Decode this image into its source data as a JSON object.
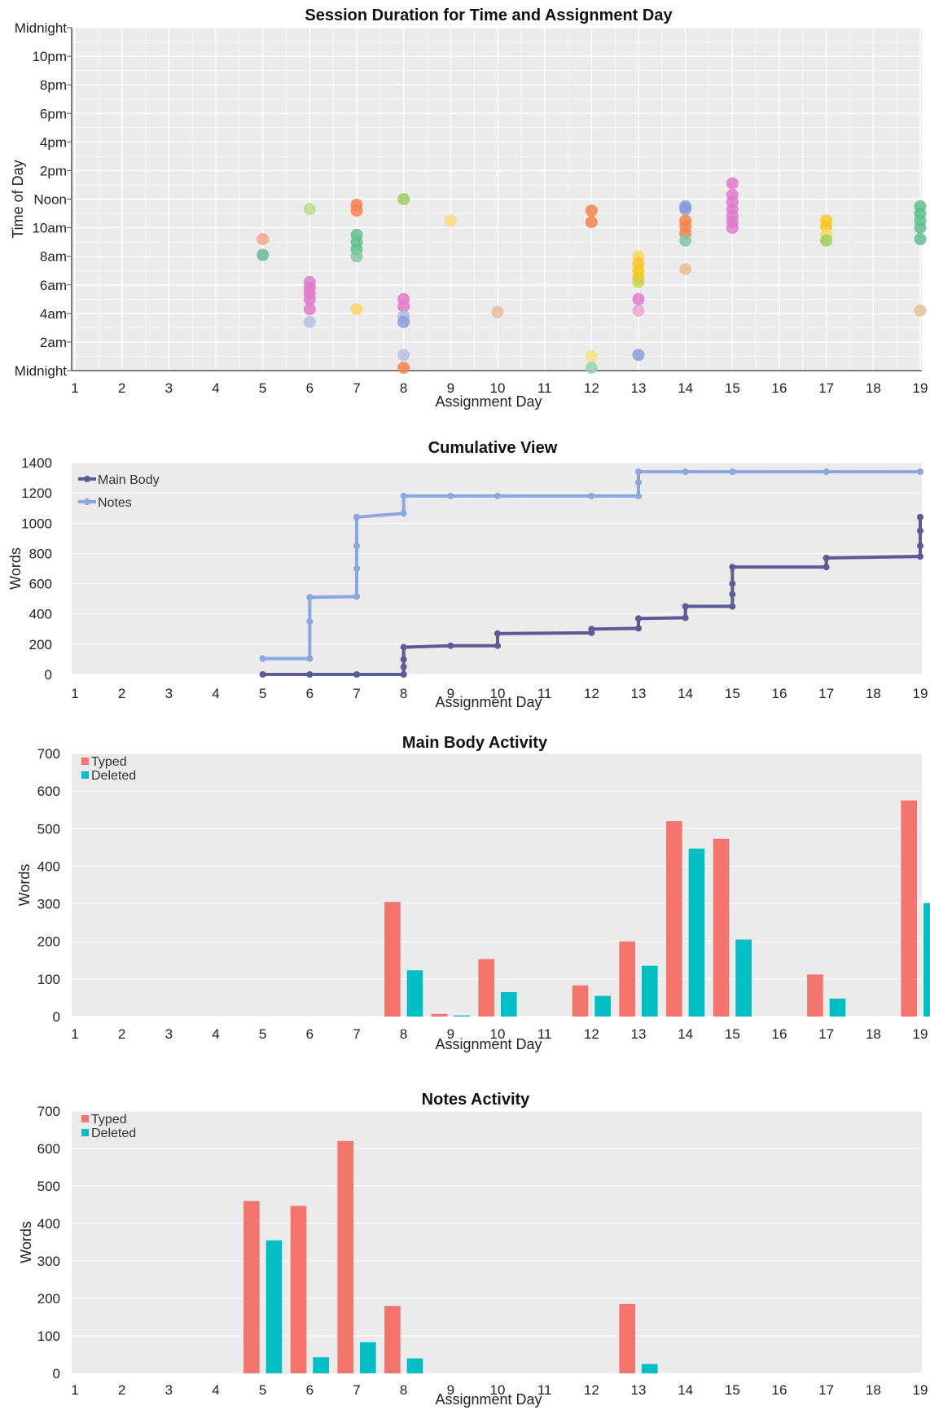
{
  "chart_data": [
    {
      "type": "scatter",
      "title": "Session Duration for Time and Assignment Day",
      "xlabel": "Assignment Day",
      "ylabel": "Time of Day",
      "x_ticks": [
        1,
        2,
        3,
        4,
        5,
        6,
        7,
        8,
        9,
        10,
        11,
        12,
        13,
        14,
        15,
        16,
        17,
        18,
        19
      ],
      "y_tick_labels": [
        "Midnight",
        "2am",
        "4am",
        "6am",
        "8am",
        "10am",
        "Noon",
        "2pm",
        "4pm",
        "6pm",
        "8pm",
        "10pm",
        "Midnight"
      ],
      "ylim_hours": [
        0,
        24
      ],
      "points": [
        {
          "x": 5,
          "y": 9.2,
          "color": "#f0a890"
        },
        {
          "x": 5,
          "y": 8.1,
          "color": "#66bb99"
        },
        {
          "x": 6,
          "y": 11.3,
          "color": "#b8e08a"
        },
        {
          "x": 6,
          "y": 6.2,
          "color": "#e07acc"
        },
        {
          "x": 6,
          "y": 5.8,
          "color": "#e07acc"
        },
        {
          "x": 6,
          "y": 5.4,
          "color": "#e07acc"
        },
        {
          "x": 6,
          "y": 5.0,
          "color": "#e07acc"
        },
        {
          "x": 6,
          "y": 4.3,
          "color": "#e07acc"
        },
        {
          "x": 6,
          "y": 3.4,
          "color": "#b9c0e0"
        },
        {
          "x": 7,
          "y": 11.6,
          "color": "#f4824f"
        },
        {
          "x": 7,
          "y": 11.2,
          "color": "#f4824f"
        },
        {
          "x": 7,
          "y": 9.5,
          "color": "#5ebf8f"
        },
        {
          "x": 7,
          "y": 9.0,
          "color": "#5ebf8f"
        },
        {
          "x": 7,
          "y": 8.5,
          "color": "#5ebf8f"
        },
        {
          "x": 7,
          "y": 8.0,
          "color": "#80c8a0"
        },
        {
          "x": 7,
          "y": 4.3,
          "color": "#f8d860"
        },
        {
          "x": 8,
          "y": 12.0,
          "color": "#9bd05a"
        },
        {
          "x": 8,
          "y": 5.0,
          "color": "#e07acc"
        },
        {
          "x": 8,
          "y": 4.5,
          "color": "#e07acc"
        },
        {
          "x": 8,
          "y": 3.8,
          "color": "#a8b8e8"
        },
        {
          "x": 8,
          "y": 3.4,
          "color": "#8a9cd8"
        },
        {
          "x": 8,
          "y": 1.1,
          "color": "#b9c0e0"
        },
        {
          "x": 8,
          "y": 0.2,
          "color": "#f4824f"
        },
        {
          "x": 9,
          "y": 10.5,
          "color": "#f8d880"
        },
        {
          "x": 10,
          "y": 4.1,
          "color": "#e8c098"
        },
        {
          "x": 12,
          "y": 11.2,
          "color": "#f4824f"
        },
        {
          "x": 12,
          "y": 10.4,
          "color": "#f4824f"
        },
        {
          "x": 12,
          "y": 1.0,
          "color": "#f8e080"
        },
        {
          "x": 12,
          "y": 0.2,
          "color": "#9ad0b0"
        },
        {
          "x": 13,
          "y": 8.0,
          "color": "#f8d860"
        },
        {
          "x": 13,
          "y": 7.5,
          "color": "#f8c820"
        },
        {
          "x": 13,
          "y": 7.0,
          "color": "#f8c820"
        },
        {
          "x": 13,
          "y": 6.5,
          "color": "#f8c820"
        },
        {
          "x": 13,
          "y": 6.2,
          "color": "#c8d848"
        },
        {
          "x": 13,
          "y": 5.0,
          "color": "#e07acc"
        },
        {
          "x": 13,
          "y": 4.2,
          "color": "#e8a8d8"
        },
        {
          "x": 13,
          "y": 1.1,
          "color": "#8a9cd8"
        },
        {
          "x": 14,
          "y": 11.5,
          "color": "#8a9cd8"
        },
        {
          "x": 14,
          "y": 11.3,
          "color": "#8a9cd8"
        },
        {
          "x": 14,
          "y": 10.5,
          "color": "#f4824f"
        },
        {
          "x": 14,
          "y": 10.1,
          "color": "#f4824f"
        },
        {
          "x": 14,
          "y": 9.6,
          "color": "#f4824f"
        },
        {
          "x": 14,
          "y": 9.1,
          "color": "#80c8a0"
        },
        {
          "x": 14,
          "y": 7.1,
          "color": "#e8c098"
        },
        {
          "x": 15,
          "y": 13.1,
          "color": "#e07acc"
        },
        {
          "x": 15,
          "y": 12.3,
          "color": "#e07acc"
        },
        {
          "x": 15,
          "y": 11.8,
          "color": "#e07acc"
        },
        {
          "x": 15,
          "y": 11.3,
          "color": "#e07acc"
        },
        {
          "x": 15,
          "y": 10.8,
          "color": "#e07acc"
        },
        {
          "x": 15,
          "y": 10.4,
          "color": "#e07acc"
        },
        {
          "x": 15,
          "y": 10.0,
          "color": "#e07acc"
        },
        {
          "x": 17,
          "y": 10.5,
          "color": "#f8c820"
        },
        {
          "x": 17,
          "y": 10.1,
          "color": "#f8c820"
        },
        {
          "x": 17,
          "y": 9.5,
          "color": "#f8d860"
        },
        {
          "x": 17,
          "y": 9.1,
          "color": "#9bd05a"
        },
        {
          "x": 19,
          "y": 11.5,
          "color": "#5ebf8f"
        },
        {
          "x": 19,
          "y": 11.0,
          "color": "#5ebf8f"
        },
        {
          "x": 19,
          "y": 10.5,
          "color": "#5ebf8f"
        },
        {
          "x": 19,
          "y": 10.0,
          "color": "#5ebf8f"
        },
        {
          "x": 19,
          "y": 9.2,
          "color": "#5ebf8f"
        },
        {
          "x": 19,
          "y": 4.2,
          "color": "#e8c098"
        }
      ]
    },
    {
      "type": "line",
      "title": "Cumulative View",
      "xlabel": "Assignment Day",
      "ylabel": "Words",
      "x_ticks": [
        1,
        2,
        3,
        4,
        5,
        6,
        7,
        8,
        9,
        10,
        11,
        12,
        13,
        14,
        15,
        16,
        17,
        18,
        19
      ],
      "ylim": [
        0,
        1400
      ],
      "y_ticks": [
        0,
        200,
        400,
        600,
        800,
        1000,
        1200,
        1400
      ],
      "legend_placement": "top-left",
      "series": [
        {
          "name": "Main Body",
          "color": "#5b5b96",
          "points": [
            [
              5,
              0
            ],
            [
              6,
              0
            ],
            [
              7,
              0
            ],
            [
              8,
              0
            ],
            [
              8,
              50
            ],
            [
              8,
              100
            ],
            [
              8,
              180
            ],
            [
              9,
              190
            ],
            [
              10,
              190
            ],
            [
              10,
              270
            ],
            [
              12,
              275
            ],
            [
              12,
              300
            ],
            [
              13,
              305
            ],
            [
              13,
              370
            ],
            [
              14,
              375
            ],
            [
              14,
              450
            ],
            [
              15,
              450
            ],
            [
              15,
              530
            ],
            [
              15,
              600
            ],
            [
              15,
              710
            ],
            [
              17,
              710
            ],
            [
              17,
              770
            ],
            [
              19,
              780
            ],
            [
              19,
              850
            ],
            [
              19,
              950
            ],
            [
              19,
              1040
            ]
          ]
        },
        {
          "name": "Notes",
          "color": "#8aa8e0",
          "points": [
            [
              5,
              105
            ],
            [
              6,
              105
            ],
            [
              6,
              350
            ],
            [
              6,
              510
            ],
            [
              7,
              515
            ],
            [
              7,
              700
            ],
            [
              7,
              850
            ],
            [
              7,
              1040
            ],
            [
              8,
              1065
            ],
            [
              8,
              1180
            ],
            [
              9,
              1180
            ],
            [
              10,
              1180
            ],
            [
              12,
              1180
            ],
            [
              13,
              1180
            ],
            [
              13,
              1270
            ],
            [
              13,
              1340
            ],
            [
              14,
              1340
            ],
            [
              15,
              1340
            ],
            [
              17,
              1340
            ],
            [
              19,
              1340
            ]
          ]
        }
      ]
    },
    {
      "type": "bar",
      "title": "Main Body Activity",
      "xlabel": "Assignment Day",
      "ylabel": "Words",
      "categories": [
        1,
        2,
        3,
        4,
        5,
        6,
        7,
        8,
        9,
        10,
        11,
        12,
        13,
        14,
        15,
        16,
        17,
        18,
        19
      ],
      "ylim": [
        0,
        700
      ],
      "y_ticks": [
        0,
        100,
        200,
        300,
        400,
        500,
        600,
        700
      ],
      "legend_placement": "top-left",
      "series": [
        {
          "name": "Typed",
          "color": "#f4756b",
          "values": [
            0,
            0,
            0,
            0,
            0,
            0,
            0,
            305,
            7,
            153,
            0,
            83,
            200,
            520,
            473,
            0,
            112,
            0,
            575
          ]
        },
        {
          "name": "Deleted",
          "color": "#00bfc4",
          "values": [
            0,
            0,
            0,
            0,
            0,
            0,
            0,
            123,
            3,
            65,
            0,
            55,
            135,
            447,
            205,
            0,
            48,
            0,
            302
          ]
        }
      ]
    },
    {
      "type": "bar",
      "title": "Notes Activity",
      "xlabel": "Assignment Day",
      "ylabel": "Words",
      "categories": [
        1,
        2,
        3,
        4,
        5,
        6,
        7,
        8,
        9,
        10,
        11,
        12,
        13,
        14,
        15,
        16,
        17,
        18,
        19
      ],
      "ylim": [
        0,
        700
      ],
      "y_ticks": [
        0,
        100,
        200,
        300,
        400,
        500,
        600,
        700
      ],
      "legend_placement": "top-left",
      "series": [
        {
          "name": "Typed",
          "color": "#f4756b",
          "values": [
            0,
            0,
            0,
            0,
            460,
            447,
            620,
            180,
            0,
            0,
            0,
            0,
            185,
            0,
            0,
            0,
            0,
            0,
            0
          ]
        },
        {
          "name": "Deleted",
          "color": "#00bfc4",
          "values": [
            0,
            0,
            0,
            0,
            355,
            43,
            83,
            40,
            0,
            0,
            0,
            0,
            25,
            0,
            0,
            0,
            0,
            0,
            0
          ]
        }
      ]
    }
  ]
}
